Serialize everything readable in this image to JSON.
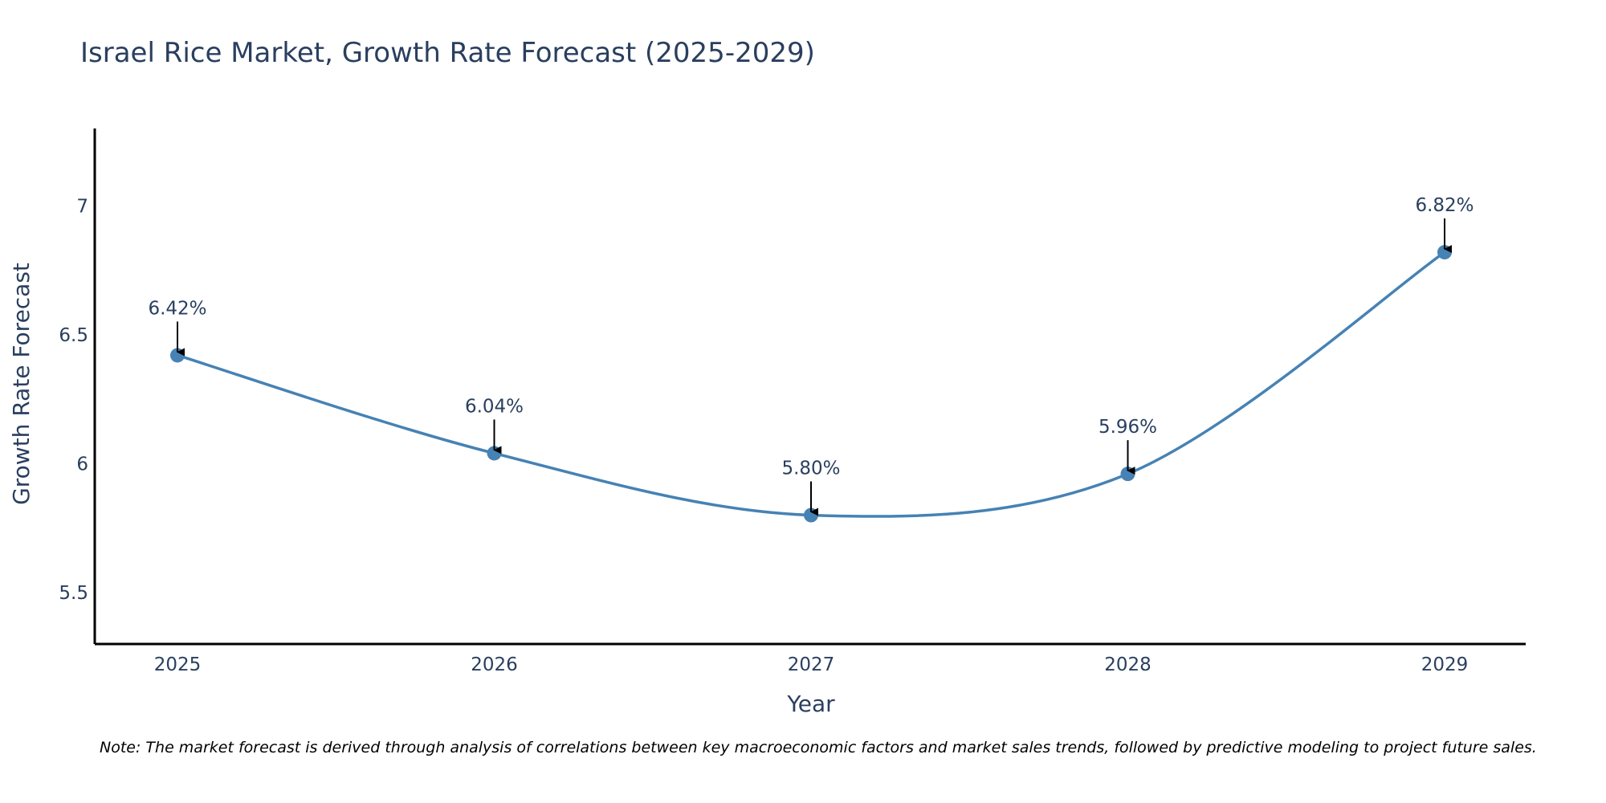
{
  "chart_data": {
    "type": "line",
    "title": "Israel Rice Market, Growth Rate Forecast (2025-2029)",
    "xlabel": "Year",
    "ylabel": "Growth Rate Forecast",
    "categories": [
      "2025",
      "2026",
      "2027",
      "2028",
      "2029"
    ],
    "values": [
      6.42,
      6.04,
      5.8,
      5.96,
      6.82
    ],
    "data_labels": [
      "6.42%",
      "6.04%",
      "5.80%",
      "5.96%",
      "6.82%"
    ],
    "y_ticks": [
      5.5,
      6,
      6.5,
      7
    ],
    "y_tick_labels": [
      "5.5",
      "6",
      "6.5",
      "7"
    ],
    "ylim": [
      5.3,
      7.3
    ],
    "line_shape": "spline",
    "grid": false,
    "colors": {
      "line": "#4682b4",
      "marker": "#4682b4",
      "axis": "#000000",
      "text": "#2a3f5f",
      "arrow": "#000000"
    },
    "note": "Note: The market forecast is derived through analysis of correlations between key macroeconomic factors and market sales trends, followed by predictive modeling to project future sales."
  }
}
